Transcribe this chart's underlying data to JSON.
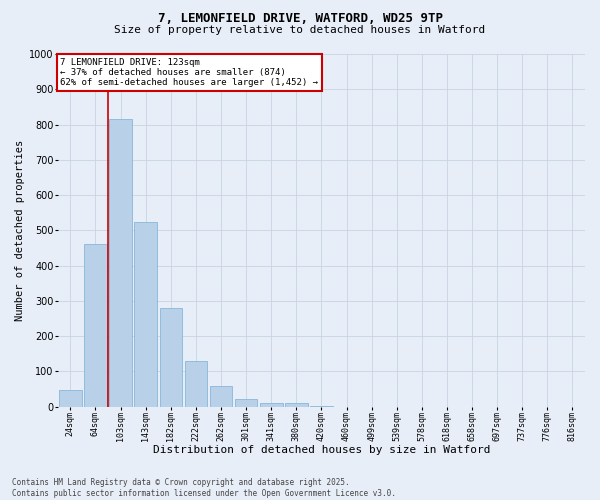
{
  "title": "7, LEMONFIELD DRIVE, WATFORD, WD25 9TP",
  "subtitle": "Size of property relative to detached houses in Watford",
  "xlabel": "Distribution of detached houses by size in Watford",
  "ylabel": "Number of detached properties",
  "categories": [
    "24sqm",
    "64sqm",
    "103sqm",
    "143sqm",
    "182sqm",
    "222sqm",
    "262sqm",
    "301sqm",
    "341sqm",
    "380sqm",
    "420sqm",
    "460sqm",
    "499sqm",
    "539sqm",
    "578sqm",
    "618sqm",
    "658sqm",
    "697sqm",
    "737sqm",
    "776sqm",
    "816sqm"
  ],
  "values": [
    47,
    462,
    815,
    525,
    280,
    130,
    60,
    22,
    10,
    10,
    3,
    0,
    0,
    0,
    0,
    0,
    0,
    0,
    0,
    0,
    0
  ],
  "bar_color": "#b8d0e8",
  "bar_edge_color": "#7aafd4",
  "grid_color": "#c8d4e4",
  "bg_color": "#e8eef8",
  "vline_x": 1.5,
  "vline_color": "#cc0000",
  "annotation_text": "7 LEMONFIELD DRIVE: 123sqm\n← 37% of detached houses are smaller (874)\n62% of semi-detached houses are larger (1,452) →",
  "annotation_box_color": "#ffffff",
  "annotation_box_edge": "#cc0000",
  "footer_text": "Contains HM Land Registry data © Crown copyright and database right 2025.\nContains public sector information licensed under the Open Government Licence v3.0.",
  "ylim": [
    0,
    1000
  ],
  "yticks": [
    0,
    100,
    200,
    300,
    400,
    500,
    600,
    700,
    800,
    900,
    1000
  ],
  "title_fontsize": 9,
  "subtitle_fontsize": 8,
  "xlabel_fontsize": 8,
  "ylabel_fontsize": 7.5,
  "xtick_fontsize": 6,
  "ytick_fontsize": 7,
  "annotation_fontsize": 6.5,
  "footer_fontsize": 5.5
}
